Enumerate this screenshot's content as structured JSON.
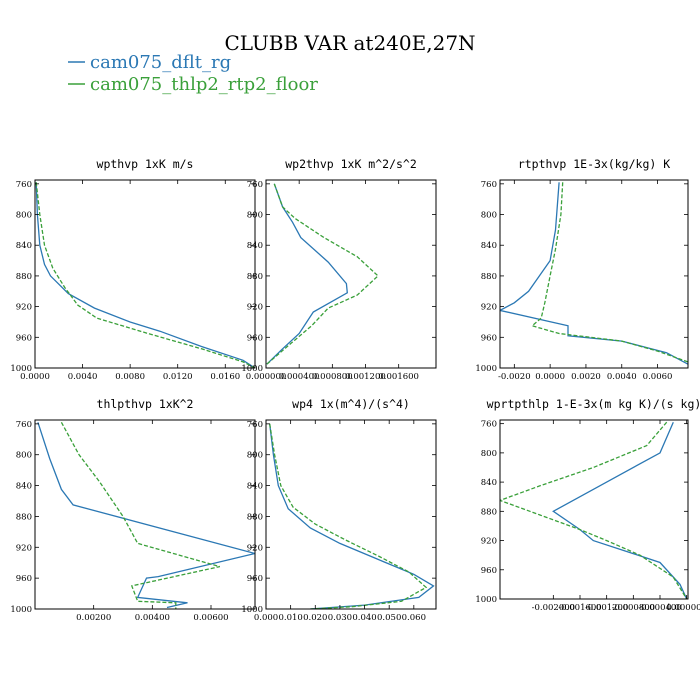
{
  "title": "CLUBB VAR at240E,27N",
  "colors": {
    "series1": "#2b78b4",
    "series2": "#3aa03a"
  },
  "legend": [
    {
      "label": "cam075_dflt_rg",
      "color": "#2b78b4"
    },
    {
      "label": "cam075_thlp2_rtp2_floor",
      "color": "#3aa03a"
    }
  ],
  "chart_data": [
    {
      "type": "line",
      "title": "wpthvp  1xK m/s",
      "xlim": [
        0,
        0.0185
      ],
      "ylim": [
        1000,
        755
      ],
      "xticks": [
        {
          "v": 0,
          "label": "0.0000"
        },
        {
          "v": 0.004,
          "label": "0.0040"
        },
        {
          "v": 0.008,
          "label": "0.0080"
        },
        {
          "v": 0.012,
          "label": "0.0120"
        },
        {
          "v": 0.016,
          "label": "0.0160"
        }
      ],
      "yticks": [
        {
          "v": 760,
          "label": "760"
        },
        {
          "v": 800,
          "label": "800"
        },
        {
          "v": 840,
          "label": "840"
        },
        {
          "v": 880,
          "label": "880"
        },
        {
          "v": 920,
          "label": "920"
        },
        {
          "v": 960,
          "label": "960"
        },
        {
          "v": 1000,
          "label": "1000"
        }
      ],
      "series": [
        {
          "name": "cam075_dflt_rg",
          "points": [
            [
              0.0001,
              758
            ],
            [
              0.0002,
              800
            ],
            [
              0.0004,
              840
            ],
            [
              0.0008,
              865
            ],
            [
              0.0013,
              880
            ],
            [
              0.0028,
              903
            ],
            [
              0.005,
              922
            ],
            [
              0.008,
              940
            ],
            [
              0.0105,
              952
            ],
            [
              0.014,
              972
            ],
            [
              0.0175,
              990
            ],
            [
              0.0185,
              1000
            ]
          ]
        },
        {
          "name": "cam075_thlp2_rtp2_floor",
          "points": [
            [
              0.0001,
              758
            ],
            [
              0.0004,
              800
            ],
            [
              0.0008,
              840
            ],
            [
              0.0015,
              870
            ],
            [
              0.0025,
              895
            ],
            [
              0.0036,
              918
            ],
            [
              0.0052,
              935
            ],
            [
              0.0095,
              955
            ],
            [
              0.014,
              975
            ],
            [
              0.0175,
              992
            ],
            [
              0.0185,
              1000
            ]
          ]
        }
      ]
    },
    {
      "type": "line",
      "title": "wp2thvp  1xK m^2/s^2",
      "xlim": [
        0,
        0.00205
      ],
      "ylim": [
        1000,
        755
      ],
      "xticks": [
        {
          "v": 0,
          "label": "0.000000"
        },
        {
          "v": 0.0004,
          "label": "0.000400"
        },
        {
          "v": 0.0008,
          "label": "0.000800"
        },
        {
          "v": 0.0012,
          "label": "0.001200"
        },
        {
          "v": 0.0016,
          "label": "0.001600"
        }
      ],
      "yticks": [
        {
          "v": 760,
          "label": "760"
        },
        {
          "v": 800,
          "label": "800"
        },
        {
          "v": 840,
          "label": "840"
        },
        {
          "v": 880,
          "label": "880"
        },
        {
          "v": 920,
          "label": "920"
        },
        {
          "v": 960,
          "label": "960"
        },
        {
          "v": 1000,
          "label": "1000"
        }
      ],
      "series": [
        {
          "name": "cam075_dflt_rg",
          "points": [
            [
              0.0001,
              760
            ],
            [
              0.0002,
              790
            ],
            [
              0.00032,
              810
            ],
            [
              0.00042,
              830
            ],
            [
              0.00075,
              862
            ],
            [
              0.00097,
              890
            ],
            [
              0.00098,
              902
            ],
            [
              0.00057,
              927
            ],
            [
              0.0004,
              955
            ],
            [
              0.0002,
              975
            ],
            [
              1e-05,
              995
            ]
          ]
        },
        {
          "name": "cam075_thlp2_rtp2_floor",
          "points": [
            [
              0.0001,
              760
            ],
            [
              0.0002,
              790
            ],
            [
              0.00035,
              805
            ],
            [
              0.0007,
              830
            ],
            [
              0.0011,
              855
            ],
            [
              0.00135,
              880
            ],
            [
              0.0011,
              905
            ],
            [
              0.00075,
              922
            ],
            [
              0.00055,
              945
            ],
            [
              0.0003,
              968
            ],
            [
              1e-05,
              995
            ]
          ]
        }
      ]
    },
    {
      "type": "line",
      "title": "rtpthvp  1E-3x(kg/kg) K",
      "xlim": [
        -0.0028,
        0.0077
      ],
      "ylim": [
        1000,
        755
      ],
      "xticks": [
        {
          "v": -0.002,
          "label": "-0.0020"
        },
        {
          "v": 0,
          "label": "0.0000"
        },
        {
          "v": 0.002,
          "label": "0.0020"
        },
        {
          "v": 0.004,
          "label": "0.0040"
        },
        {
          "v": 0.006,
          "label": "0.0060"
        }
      ],
      "yticks": [
        {
          "v": 760,
          "label": "760"
        },
        {
          "v": 800,
          "label": "800"
        },
        {
          "v": 840,
          "label": "840"
        },
        {
          "v": 880,
          "label": "880"
        },
        {
          "v": 920,
          "label": "920"
        },
        {
          "v": 960,
          "label": "960"
        },
        {
          "v": 1000,
          "label": "1000"
        }
      ],
      "series": [
        {
          "name": "cam075_dflt_rg",
          "points": [
            [
              0.0005,
              758
            ],
            [
              0.0003,
              820
            ],
            [
              0,
              860
            ],
            [
              -0.0006,
              880
            ],
            [
              -0.0012,
              900
            ],
            [
              -0.002,
              915
            ],
            [
              -0.0028,
              925
            ],
            [
              0.001,
              945
            ],
            [
              0.001,
              958
            ],
            [
              0.004,
              965
            ],
            [
              0.0065,
              980
            ],
            [
              0.0077,
              995
            ]
          ]
        },
        {
          "name": "cam075_thlp2_rtp2_floor",
          "points": [
            [
              0.0007,
              758
            ],
            [
              0.0006,
              800
            ],
            [
              0.0003,
              845
            ],
            [
              0,
              880
            ],
            [
              -0.0003,
              915
            ],
            [
              -0.0005,
              935
            ],
            [
              -0.001,
              945
            ],
            [
              0.0005,
              955
            ],
            [
              0.004,
              965
            ],
            [
              0.006,
              978
            ],
            [
              0.0077,
              992
            ]
          ]
        }
      ]
    },
    {
      "type": "line",
      "title": "thlpthvp  1xK^2",
      "xlim": [
        0,
        0.0075
      ],
      "ylim": [
        1000,
        755
      ],
      "xticks": [
        {
          "v": 0.002,
          "label": "0.00200"
        },
        {
          "v": 0.004,
          "label": "0.00400"
        },
        {
          "v": 0.006,
          "label": "0.00600"
        }
      ],
      "yticks": [
        {
          "v": 760,
          "label": "760"
        },
        {
          "v": 800,
          "label": "800"
        },
        {
          "v": 840,
          "label": "840"
        },
        {
          "v": 880,
          "label": "880"
        },
        {
          "v": 920,
          "label": "920"
        },
        {
          "v": 960,
          "label": "960"
        },
        {
          "v": 1000,
          "label": "1000"
        }
      ],
      "series": [
        {
          "name": "cam075_dflt_rg",
          "points": [
            [
              0.0001,
              758
            ],
            [
              0.0005,
              805
            ],
            [
              0.0009,
              845
            ],
            [
              0.0013,
              865
            ],
            [
              0.0075,
              928
            ],
            [
              0.0042,
              958
            ],
            [
              0.0038,
              960
            ],
            [
              0.0035,
              985
            ],
            [
              0.0052,
              992
            ],
            [
              0.0045,
              998
            ]
          ]
        },
        {
          "name": "cam075_thlp2_rtp2_floor",
          "points": [
            [
              0.0009,
              758
            ],
            [
              0.0015,
              800
            ],
            [
              0.0022,
              835
            ],
            [
              0.003,
              880
            ],
            [
              0.0035,
              915
            ],
            [
              0.0063,
              945
            ],
            [
              0.0033,
              970
            ],
            [
              0.0035,
              990
            ],
            [
              0.0048,
              992
            ],
            [
              0.0048,
              1000
            ]
          ]
        }
      ]
    },
    {
      "type": "line",
      "title": "wp4  1x(m^4)/(s^4)",
      "xlim": [
        0,
        0.069
      ],
      "ylim": [
        1000,
        755
      ],
      "xticks": [
        {
          "v": 0,
          "label": "0.000"
        },
        {
          "v": 0.01,
          "label": "0.010"
        },
        {
          "v": 0.02,
          "label": "0.020"
        },
        {
          "v": 0.03,
          "label": "0.030"
        },
        {
          "v": 0.04,
          "label": "0.040"
        },
        {
          "v": 0.05,
          "label": "0.050"
        },
        {
          "v": 0.06,
          "label": "0.060"
        }
      ],
      "yticks": [
        {
          "v": 760,
          "label": "760"
        },
        {
          "v": 800,
          "label": "800"
        },
        {
          "v": 840,
          "label": "840"
        },
        {
          "v": 880,
          "label": "880"
        },
        {
          "v": 920,
          "label": "920"
        },
        {
          "v": 960,
          "label": "960"
        },
        {
          "v": 1000,
          "label": "1000"
        }
      ],
      "series": [
        {
          "name": "cam075_dflt_rg",
          "points": [
            [
              0.0015,
              760
            ],
            [
              0.003,
              800
            ],
            [
              0.005,
              840
            ],
            [
              0.009,
              870
            ],
            [
              0.018,
              895
            ],
            [
              0.03,
              915
            ],
            [
              0.045,
              935
            ],
            [
              0.06,
              955
            ],
            [
              0.068,
              970
            ],
            [
              0.062,
              985
            ],
            [
              0.04,
              995
            ],
            [
              0.018,
              1000
            ]
          ]
        },
        {
          "name": "cam075_thlp2_rtp2_floor",
          "points": [
            [
              0.0015,
              760
            ],
            [
              0.0035,
              800
            ],
            [
              0.006,
              840
            ],
            [
              0.011,
              868
            ],
            [
              0.02,
              890
            ],
            [
              0.032,
              910
            ],
            [
              0.046,
              932
            ],
            [
              0.058,
              952
            ],
            [
              0.065,
              972
            ],
            [
              0.055,
              990
            ],
            [
              0.035,
              997
            ],
            [
              0.018,
              1000
            ]
          ]
        }
      ]
    },
    {
      "type": "line",
      "title": "wprtpthlp  1-E-3x(m kg K)/(s kg)",
      "xlim": [
        -0.0028,
        2e-05
      ],
      "ylim": [
        1000,
        755
      ],
      "xticks": [
        {
          "v": -0.002,
          "label": "-0.002000"
        },
        {
          "v": -0.0016,
          "label": "-0.001600"
        },
        {
          "v": -0.0012,
          "label": "-0.001200"
        },
        {
          "v": -0.0008,
          "label": "-0.000800"
        },
        {
          "v": -0.0004,
          "label": "-0.000400"
        },
        {
          "v": 0,
          "label": "0.000000"
        }
      ],
      "yticks": [
        {
          "v": 760,
          "label": "760"
        },
        {
          "v": 800,
          "label": "800"
        },
        {
          "v": 840,
          "label": "840"
        },
        {
          "v": 880,
          "label": "880"
        },
        {
          "v": 920,
          "label": "920"
        },
        {
          "v": 960,
          "label": "960"
        },
        {
          "v": 1000,
          "label": "1000"
        }
      ],
      "series": [
        {
          "name": "cam075_dflt_rg",
          "points": [
            [
              -0.0002,
              758
            ],
            [
              -0.0004,
              800
            ],
            [
              -0.0011,
              835
            ],
            [
              -0.0016,
              860
            ],
            [
              -0.002,
              880
            ],
            [
              -0.0016,
              905
            ],
            [
              -0.0014,
              920
            ],
            [
              -0.0009,
              935
            ],
            [
              -0.0004,
              950
            ],
            [
              -0.0001,
              980
            ],
            [
              0,
              1000
            ]
          ]
        },
        {
          "name": "cam075_thlp2_rtp2_floor",
          "points": [
            [
              -0.0003,
              758
            ],
            [
              -0.0006,
              790
            ],
            [
              -0.0014,
              820
            ],
            [
              -0.0022,
              845
            ],
            [
              -0.0028,
              865
            ],
            [
              -0.0022,
              885
            ],
            [
              -0.0016,
              905
            ],
            [
              -0.0012,
              920
            ],
            [
              -0.0007,
              940
            ],
            [
              -0.0002,
              970
            ],
            [
              0,
              1000
            ]
          ]
        }
      ]
    }
  ]
}
